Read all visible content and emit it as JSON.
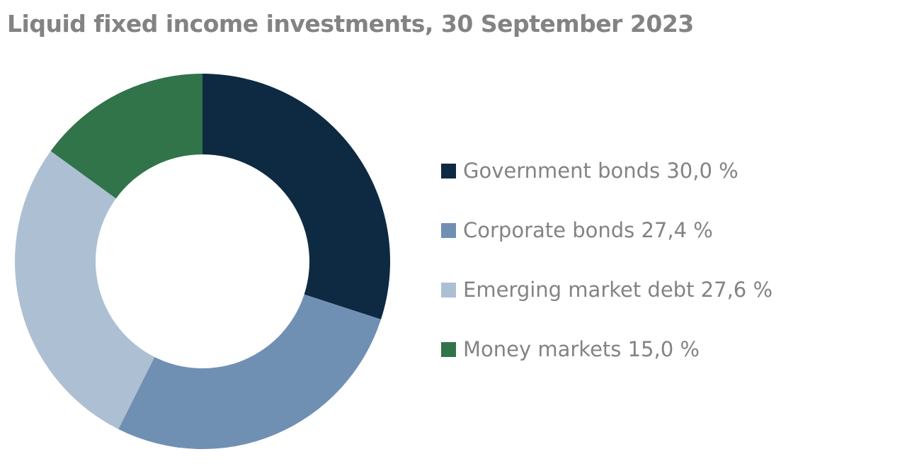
{
  "chart_data": {
    "type": "pie",
    "title": "Liquid fixed income investments, 30 September 2023",
    "donut": true,
    "categories": [
      "Government bonds",
      "Corporate bonds",
      "Emerging market debt",
      "Money markets"
    ],
    "values": [
      30.0,
      27.4,
      27.6,
      15.0
    ],
    "labels": [
      "Government bonds 30,0 %",
      "Corporate bonds 27,4 %",
      "Emerging market debt 27,6 %",
      "Money markets 15,0 %"
    ],
    "colors": [
      "#0d2a42",
      "#7090b3",
      "#adbfd3",
      "#31744a"
    ],
    "legend": "right"
  }
}
